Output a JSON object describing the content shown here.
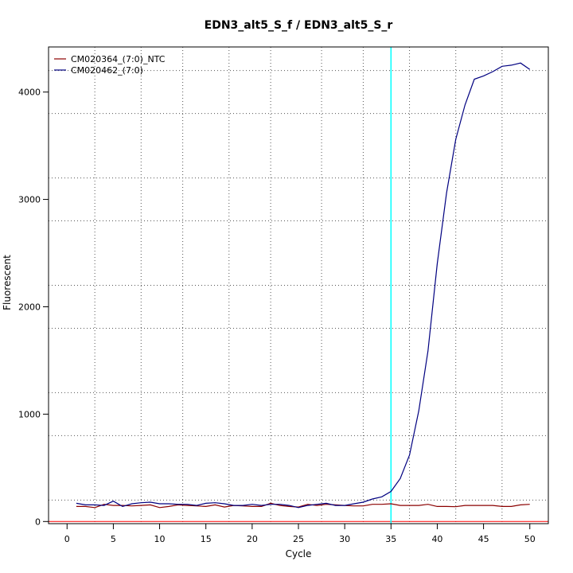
{
  "chart_data": {
    "type": "line",
    "title": "EDN3_alt5_S_f / EDN3_alt5_S_r",
    "xlabel": "Cycle",
    "ylabel": "Fluorescent",
    "xlim": [
      -2,
      52
    ],
    "ylim": [
      -20,
      4420
    ],
    "x_ticks": [
      0,
      5,
      10,
      15,
      20,
      25,
      30,
      35,
      40,
      45,
      50
    ],
    "y_ticks": [
      0,
      1000,
      2000,
      3000,
      4000
    ],
    "x_grid": [
      3,
      8,
      12.5,
      17.5,
      22,
      27.5,
      32,
      37,
      42,
      47
    ],
    "y_grid": [
      200,
      800,
      1200,
      1800,
      2200,
      2800,
      3200,
      3800,
      4200
    ],
    "grid": true,
    "legend": "top-left",
    "threshold": {
      "axis": "x",
      "value": 35,
      "color": "#00ffff"
    },
    "baseline": {
      "axis": "y",
      "value": 0,
      "color": "#ff0000"
    },
    "x": [
      1,
      2,
      3,
      4,
      5,
      6,
      7,
      8,
      9,
      10,
      11,
      12,
      13,
      14,
      15,
      16,
      17,
      18,
      19,
      20,
      21,
      22,
      23,
      24,
      25,
      26,
      27,
      28,
      29,
      30,
      31,
      32,
      33,
      34,
      35,
      36,
      37,
      38,
      39,
      40,
      41,
      42,
      43,
      44,
      45,
      46,
      47,
      48,
      49,
      50
    ],
    "series": [
      {
        "name": "CM020364_(7:0)_NTC",
        "color": "#8b0000",
        "values": [
          140,
          140,
          130,
          160,
          150,
          150,
          145,
          150,
          155,
          130,
          140,
          155,
          150,
          145,
          140,
          155,
          135,
          150,
          145,
          140,
          140,
          170,
          150,
          140,
          135,
          160,
          150,
          160,
          155,
          150,
          145,
          145,
          160,
          160,
          165,
          150,
          150,
          150,
          160,
          140,
          140,
          138,
          150,
          150,
          150,
          150,
          140,
          140,
          155,
          160
        ]
      },
      {
        "name": "CM020462_(7:0)",
        "color": "#000080",
        "values": [
          170,
          155,
          155,
          150,
          190,
          140,
          165,
          175,
          180,
          165,
          165,
          160,
          160,
          150,
          170,
          175,
          165,
          150,
          150,
          160,
          150,
          160,
          160,
          150,
          130,
          150,
          160,
          170,
          150,
          150,
          165,
          180,
          210,
          230,
          280,
          400,
          620,
          1030,
          1590,
          2400,
          3060,
          3560,
          3880,
          4120,
          4150,
          4190,
          4240,
          4250,
          4270,
          4210
        ]
      }
    ]
  }
}
